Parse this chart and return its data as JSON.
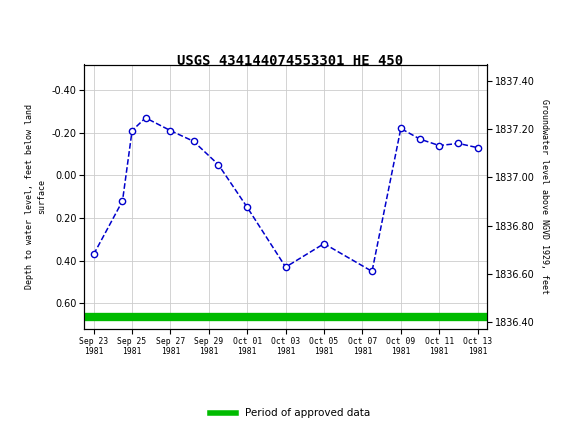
{
  "title": "USGS 434144074553301 HE 450",
  "ylabel_left": "Depth to water level, feet below land\nsurface",
  "ylabel_right": "Groundwater level above NGVD 1929, feet",
  "header_color": "#1a6b3c",
  "x_dates_line1": [
    "Sep 23",
    "Sep 25",
    "Sep 27",
    "Sep 29",
    "Oct 01",
    "Oct 03",
    "Oct 05",
    "Oct 07",
    "Oct 09",
    "Oct 11",
    "Oct 13"
  ],
  "x_dates_line2": [
    "1981",
    "1981",
    "1981",
    "1981",
    "1981",
    "1981",
    "1981",
    "1981",
    "1981",
    "1981",
    "1981"
  ],
  "x_tick_positions": [
    0,
    2,
    4,
    6,
    8,
    10,
    12,
    14,
    16,
    18,
    20
  ],
  "x_pts": [
    0,
    1.5,
    2,
    2.7,
    4,
    5.2,
    6.5,
    8,
    10,
    12,
    14.5,
    16,
    17,
    18,
    19,
    20
  ],
  "y_pts": [
    0.37,
    0.12,
    -0.21,
    -0.27,
    -0.21,
    -0.16,
    -0.05,
    0.15,
    0.43,
    0.32,
    0.45,
    -0.22,
    -0.17,
    -0.14,
    -0.15,
    -0.13
  ],
  "yticks_left": [
    -0.4,
    -0.2,
    0.0,
    0.2,
    0.4,
    0.6
  ],
  "yticks_right": [
    1836.4,
    1836.6,
    1836.8,
    1837.0,
    1837.2,
    1837.4
  ],
  "ylim_left_bottom": 0.72,
  "ylim_left_top": -0.52,
  "ylim_right_bottom": 1836.37,
  "ylim_right_top": 1837.47,
  "line_color": "#0000cc",
  "marker_face": "#ffffff",
  "grid_color": "#cccccc",
  "bg_color": "#ffffff",
  "legend_label": "Period of approved data",
  "legend_color": "#00bb00",
  "approved_bar_y": 0.665,
  "xlim_left": -0.5,
  "xlim_right": 20.5
}
